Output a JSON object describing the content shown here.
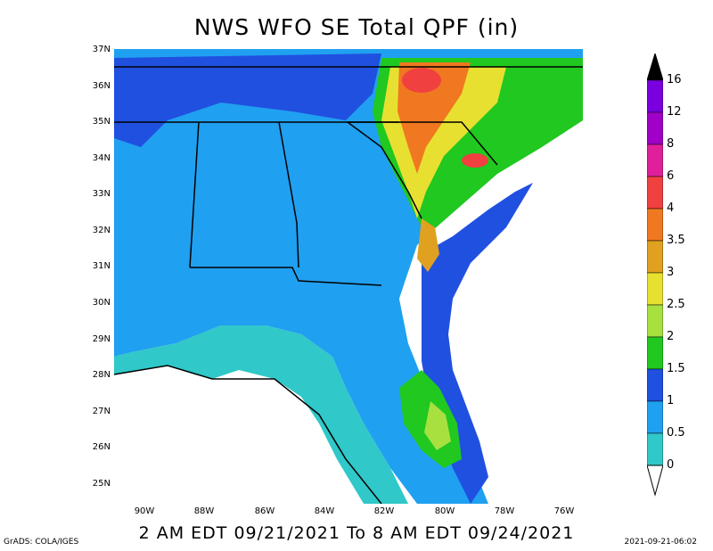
{
  "title": "NWS WFO SE Total QPF (in)",
  "subtitle": "2 AM EDT 09/21/2021 To 8 AM EDT 09/24/2021",
  "credit": "GrADS: COLA/IGES",
  "timestamp": "2021-09-21-06:02",
  "lat_labels": [
    "37N",
    "36N",
    "35N",
    "34N",
    "33N",
    "32N",
    "31N",
    "30N",
    "29N",
    "28N",
    "27N",
    "26N",
    "25N"
  ],
  "lon_labels": [
    "90W",
    "88W",
    "86W",
    "84W",
    "82W",
    "80W",
    "78W",
    "76W"
  ],
  "colorbar": {
    "labels": [
      "16",
      "12",
      "8",
      "6",
      "4",
      "3.5",
      "3",
      "2.5",
      "2",
      "1.5",
      "1",
      "0.5",
      "0"
    ],
    "colors": [
      "#7a00e0",
      "#a000c8",
      "#e0209a",
      "#f04040",
      "#f07820",
      "#e0a020",
      "#e8e030",
      "#a8e040",
      "#20c820",
      "#2050e0",
      "#20a0f0",
      "#30c8c8"
    ]
  },
  "palette": {
    "ocean_light": "#30c8c8",
    "land_light_blue": "#20a0f0",
    "land_blue": "#2050e0",
    "land_green": "#20c820",
    "land_lightgreen": "#a8e040",
    "land_yellow": "#e8e030",
    "land_gold": "#e0a020",
    "land_orange": "#f07820",
    "land_red": "#f04040"
  }
}
